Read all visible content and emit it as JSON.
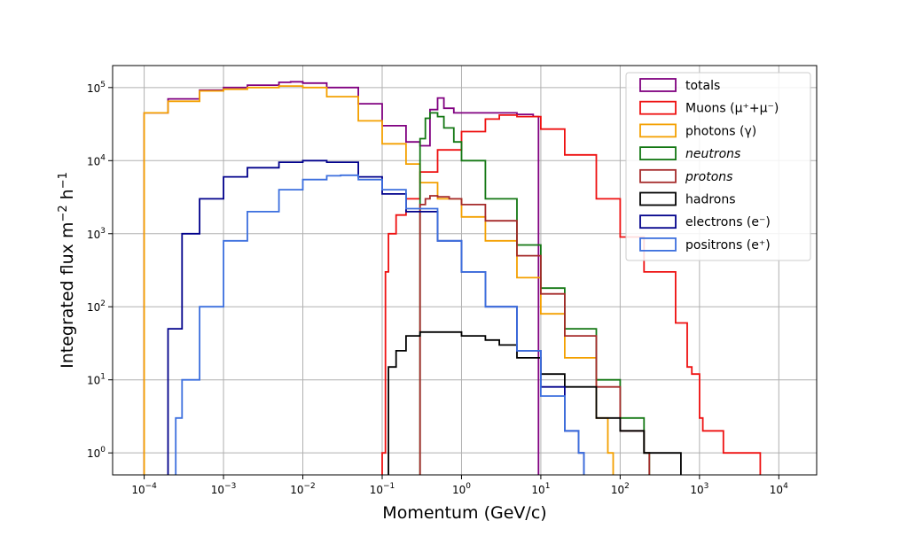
{
  "chart_data": {
    "type": "line",
    "step": true,
    "x_scale": "log",
    "y_scale": "log",
    "xlim": [
      4e-05,
      30000
    ],
    "ylim": [
      0.5,
      200000
    ],
    "xlabel": "Momentum (GeV/c)",
    "ylabel": "Integrated flux m",
    "ylabel_parts": [
      "Integrated flux m",
      "−2",
      " h",
      "−1"
    ],
    "grid": true,
    "legend_position": "top-right",
    "x_ticks": [
      {
        "base": "10",
        "exp": "−4",
        "value": 0.0001
      },
      {
        "base": "10",
        "exp": "−3",
        "value": 0.001
      },
      {
        "base": "10",
        "exp": "−2",
        "value": 0.01
      },
      {
        "base": "10",
        "exp": "−1",
        "value": 0.1
      },
      {
        "base": "10",
        "exp": "0",
        "value": 1
      },
      {
        "base": "10",
        "exp": "1",
        "value": 10
      },
      {
        "base": "10",
        "exp": "2",
        "value": 100
      },
      {
        "base": "10",
        "exp": "3",
        "value": 1000
      },
      {
        "base": "10",
        "exp": "4",
        "value": 10000
      }
    ],
    "y_ticks": [
      {
        "base": "10",
        "exp": "0",
        "value": 1
      },
      {
        "base": "10",
        "exp": "1",
        "value": 10
      },
      {
        "base": "10",
        "exp": "2",
        "value": 100
      },
      {
        "base": "10",
        "exp": "3",
        "value": 1000
      },
      {
        "base": "10",
        "exp": "4",
        "value": 10000
      },
      {
        "base": "10",
        "exp": "5",
        "value": 100000
      }
    ],
    "series": [
      {
        "name": "totals",
        "color": "#800080",
        "x": [
          0.0001,
          0.0002,
          0.0005,
          0.001,
          0.002,
          0.005,
          0.007,
          0.01,
          0.02,
          0.05,
          0.1,
          0.2,
          0.3,
          0.4,
          0.5,
          0.6,
          0.8,
          1,
          2,
          3,
          5,
          8
        ],
        "y": [
          45000,
          70000,
          92000,
          100000,
          108000,
          118000,
          120000,
          115000,
          100000,
          60000,
          30000,
          18000,
          16000,
          50000,
          72000,
          52000,
          45000,
          45000,
          45000,
          45000,
          43000,
          40000
        ]
      },
      {
        "name": "Muons (μ⁺+μ⁻)",
        "color": "#ee1111",
        "x": [
          0.1,
          0.11,
          0.12,
          0.15,
          0.2,
          0.3,
          0.5,
          1,
          2,
          3,
          5,
          10,
          20,
          50,
          100,
          200,
          500,
          700,
          800,
          1000,
          1100,
          2000,
          3000,
          5000
        ],
        "y": [
          1,
          300,
          1000,
          1800,
          3000,
          7000,
          14000,
          25000,
          37000,
          42000,
          40000,
          27000,
          12000,
          3000,
          900,
          300,
          60,
          15,
          12,
          3,
          2,
          1,
          1,
          1
        ]
      },
      {
        "name": "photons (γ)",
        "color": "#f4a000",
        "x": [
          0.0001,
          0.0002,
          0.0005,
          0.001,
          0.002,
          0.005,
          0.01,
          0.02,
          0.05,
          0.1,
          0.2,
          0.3,
          0.5,
          1,
          2,
          5,
          10,
          20,
          50,
          70
        ],
        "y": [
          45000,
          65000,
          90000,
          95000,
          100000,
          105000,
          100000,
          75000,
          35000,
          17000,
          9000,
          5000,
          3000,
          1700,
          800,
          250,
          80,
          20,
          3,
          1
        ]
      },
      {
        "name": "neutrons",
        "color": "#137713",
        "x": [
          0.3,
          0.35,
          0.4,
          0.5,
          0.6,
          0.8,
          1,
          2,
          5,
          10,
          20,
          50,
          100,
          200
        ],
        "y": [
          20000,
          38000,
          45000,
          40000,
          28000,
          18000,
          10000,
          3000,
          700,
          180,
          50,
          10,
          3,
          1
        ]
      },
      {
        "name": "protons",
        "color": "#a52a2a",
        "x": [
          0.3,
          0.35,
          0.4,
          0.5,
          0.7,
          1,
          2,
          5,
          10,
          20,
          50,
          100,
          200
        ],
        "y": [
          2500,
          3000,
          3300,
          3200,
          3000,
          2500,
          1500,
          500,
          150,
          40,
          8,
          2,
          1
        ]
      },
      {
        "name": "hadrons",
        "color": "#000000",
        "x": [
          0.12,
          0.15,
          0.2,
          0.3,
          0.5,
          1,
          2,
          3,
          5,
          10,
          20,
          50,
          100,
          200,
          500
        ],
        "y": [
          15,
          25,
          40,
          45,
          45,
          40,
          35,
          30,
          20,
          12,
          8,
          3,
          2,
          1,
          1
        ]
      },
      {
        "name": "electrons (e⁻)",
        "color": "#00008b",
        "x": [
          0.0002,
          0.0003,
          0.0005,
          0.001,
          0.002,
          0.005,
          0.01,
          0.02,
          0.05,
          0.1,
          0.2,
          0.5,
          1,
          2,
          5,
          10,
          20,
          30
        ],
        "y": [
          50,
          1000,
          3000,
          6000,
          8000,
          9500,
          10000,
          9500,
          6000,
          3500,
          2000,
          800,
          300,
          100,
          25,
          8,
          2,
          1
        ]
      },
      {
        "name": "positrons (e⁺)",
        "color": "#3c6fde",
        "x": [
          0.00025,
          0.0003,
          0.0005,
          0.001,
          0.002,
          0.005,
          0.01,
          0.02,
          0.03,
          0.05,
          0.1,
          0.2,
          0.5,
          1,
          2,
          5,
          10,
          20,
          30
        ],
        "y": [
          3,
          10,
          100,
          800,
          2000,
          4000,
          5500,
          6200,
          6300,
          5500,
          4000,
          2200,
          800,
          300,
          100,
          25,
          6,
          2,
          1
        ]
      }
    ],
    "legend": [
      {
        "label": "totals",
        "italic": false,
        "color": "#800080"
      },
      {
        "label": "Muons (μ⁺+μ⁻)",
        "italic": false,
        "color": "#ee1111"
      },
      {
        "label": "photons (γ)",
        "italic": false,
        "color": "#f4a000"
      },
      {
        "label": "neutrons",
        "italic": true,
        "color": "#137713"
      },
      {
        "label": "protons",
        "italic": true,
        "color": "#a52a2a"
      },
      {
        "label": "hadrons",
        "italic": false,
        "color": "#000000"
      },
      {
        "label": "electrons (e⁻)",
        "italic": false,
        "color": "#00008b"
      },
      {
        "label": "positrons (e⁺)",
        "italic": false,
        "color": "#3c6fde"
      }
    ]
  }
}
